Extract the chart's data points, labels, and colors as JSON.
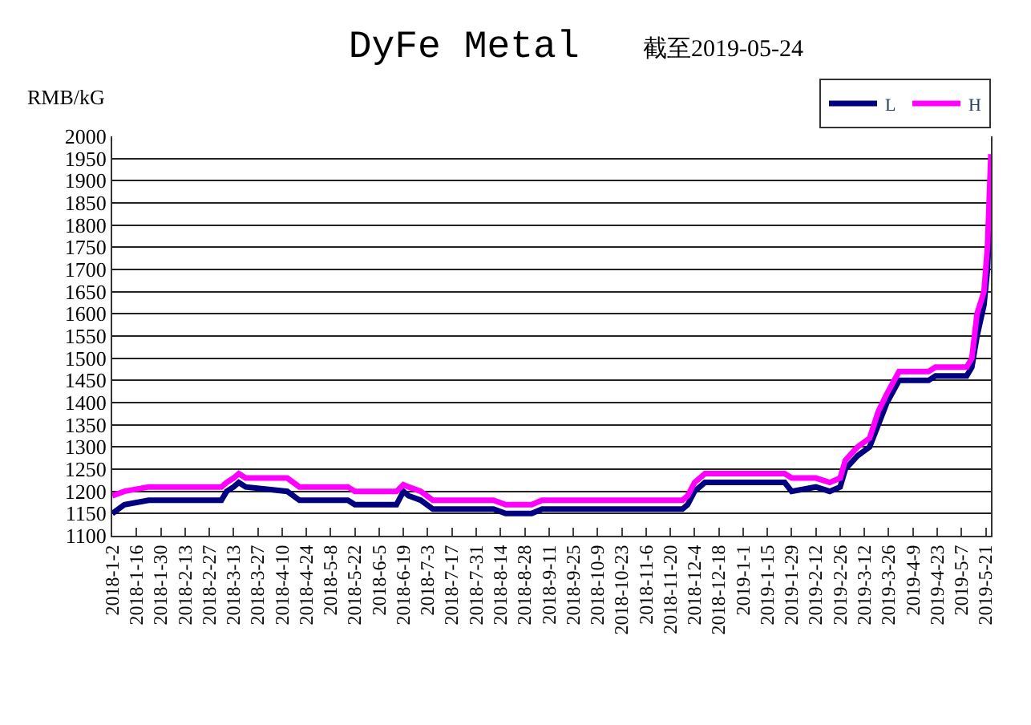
{
  "chart_data": {
    "type": "line",
    "title": "DyFe Metal",
    "subtitle": "截至2019-05-24",
    "ylabel": "RMB/kG",
    "x": [
      "2018-01-02",
      "2018-01-09",
      "2018-01-23",
      "2018-03-06",
      "2018-03-09",
      "2018-03-13",
      "2018-03-16",
      "2018-03-20",
      "2018-04-13",
      "2018-04-20",
      "2018-05-18",
      "2018-05-22",
      "2018-06-15",
      "2018-06-19",
      "2018-06-22",
      "2018-06-29",
      "2018-07-06",
      "2018-08-10",
      "2018-08-17",
      "2018-09-01",
      "2018-09-07",
      "2018-11-27",
      "2018-11-30",
      "2018-12-04",
      "2018-12-10",
      "2019-01-25",
      "2019-01-29",
      "2019-02-12",
      "2019-02-20",
      "2019-02-26",
      "2019-03-01",
      "2019-03-08",
      "2019-03-15",
      "2019-03-20",
      "2019-03-25",
      "2019-04-01",
      "2019-04-18",
      "2019-04-22",
      "2019-05-10",
      "2019-05-13",
      "2019-05-16",
      "2019-05-20",
      "2019-05-22",
      "2019-05-24"
    ],
    "series": [
      {
        "name": "L",
        "color": "#000080",
        "values": [
          1150,
          1170,
          1180,
          1180,
          1200,
          1210,
          1220,
          1210,
          1200,
          1180,
          1180,
          1170,
          1170,
          1200,
          1190,
          1180,
          1160,
          1160,
          1150,
          1150,
          1160,
          1160,
          1170,
          1200,
          1220,
          1220,
          1200,
          1210,
          1200,
          1210,
          1250,
          1280,
          1300,
          1350,
          1400,
          1450,
          1450,
          1460,
          1460,
          1480,
          1550,
          1620,
          1700,
          1880
        ]
      },
      {
        "name": "H",
        "color": "#ff00ff",
        "values": [
          1190,
          1200,
          1210,
          1210,
          1220,
          1230,
          1240,
          1230,
          1230,
          1210,
          1210,
          1200,
          1200,
          1215,
          1210,
          1200,
          1180,
          1180,
          1170,
          1170,
          1180,
          1180,
          1190,
          1220,
          1240,
          1240,
          1230,
          1230,
          1220,
          1230,
          1270,
          1300,
          1320,
          1380,
          1420,
          1470,
          1470,
          1480,
          1480,
          1500,
          1600,
          1650,
          1750,
          1960
        ]
      }
    ],
    "xlim": [
      "2018-01-02",
      "2019-05-24"
    ],
    "xticks": [
      {
        "value": "2018-01-02",
        "label": "2018-1-2"
      },
      {
        "value": "2018-01-16",
        "label": "2018-1-16"
      },
      {
        "value": "2018-01-30",
        "label": "2018-1-30"
      },
      {
        "value": "2018-02-13",
        "label": "2018-2-13"
      },
      {
        "value": "2018-02-27",
        "label": "2018-2-27"
      },
      {
        "value": "2018-03-13",
        "label": "2018-3-13"
      },
      {
        "value": "2018-03-27",
        "label": "2018-3-27"
      },
      {
        "value": "2018-04-10",
        "label": "2018-4-10"
      },
      {
        "value": "2018-04-24",
        "label": "2018-4-24"
      },
      {
        "value": "2018-05-08",
        "label": "2018-5-8"
      },
      {
        "value": "2018-05-22",
        "label": "2018-5-22"
      },
      {
        "value": "2018-06-05",
        "label": "2018-6-5"
      },
      {
        "value": "2018-06-19",
        "label": "2018-6-19"
      },
      {
        "value": "2018-07-03",
        "label": "2018-7-3"
      },
      {
        "value": "2018-07-17",
        "label": "2018-7-17"
      },
      {
        "value": "2018-07-31",
        "label": "2018-7-31"
      },
      {
        "value": "2018-08-14",
        "label": "2018-8-14"
      },
      {
        "value": "2018-08-28",
        "label": "2018-8-28"
      },
      {
        "value": "2018-09-11",
        "label": "2018-9-11"
      },
      {
        "value": "2018-09-25",
        "label": "2018-9-25"
      },
      {
        "value": "2018-10-09",
        "label": "2018-10-9"
      },
      {
        "value": "2018-10-23",
        "label": "2018-10-23"
      },
      {
        "value": "2018-11-06",
        "label": "2018-11-6"
      },
      {
        "value": "2018-11-20",
        "label": "2018-11-20"
      },
      {
        "value": "2018-12-04",
        "label": "2018-12-4"
      },
      {
        "value": "2018-12-18",
        "label": "2018-12-18"
      },
      {
        "value": "2019-01-01",
        "label": "2019-1-1"
      },
      {
        "value": "2019-01-15",
        "label": "2019-1-15"
      },
      {
        "value": "2019-01-29",
        "label": "2019-1-29"
      },
      {
        "value": "2019-02-12",
        "label": "2019-2-12"
      },
      {
        "value": "2019-02-26",
        "label": "2019-2-26"
      },
      {
        "value": "2019-03-12",
        "label": "2019-3-12"
      },
      {
        "value": "2019-03-26",
        "label": "2019-3-26"
      },
      {
        "value": "2019-04-09",
        "label": "2019-4-9"
      },
      {
        "value": "2019-04-23",
        "label": "2019-4-23"
      },
      {
        "value": "2019-05-07",
        "label": "2019-5-7"
      },
      {
        "value": "2019-05-21",
        "label": "2019-5-21"
      }
    ],
    "ylim": [
      1100,
      2000
    ],
    "yticks": [
      1100,
      1150,
      1200,
      1250,
      1300,
      1350,
      1400,
      1450,
      1500,
      1550,
      1600,
      1650,
      1700,
      1750,
      1800,
      1850,
      1900,
      1950,
      2000
    ],
    "grid": "y",
    "legend": "top right",
    "marker": "none",
    "line_style": "solid"
  }
}
